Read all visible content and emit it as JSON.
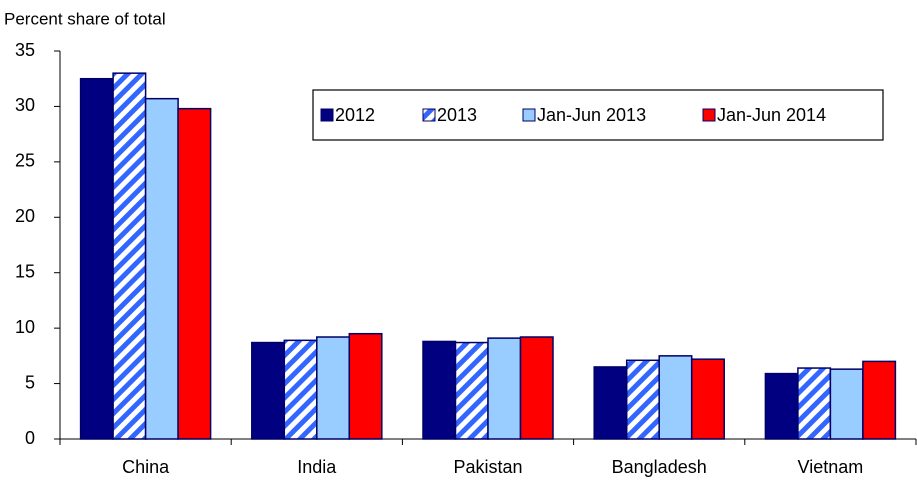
{
  "chart_data": {
    "type": "bar",
    "y_axis_label": "Percent share of total",
    "categories": [
      "China",
      "India",
      "Pakistan",
      "Bangladesh",
      "Vietnam"
    ],
    "series": [
      {
        "name": "2012",
        "color": "#000080",
        "values": [
          32.5,
          8.7,
          8.8,
          6.5,
          5.9
        ]
      },
      {
        "name": "2013",
        "color": "#3366ff",
        "hatch": true,
        "values": [
          33.0,
          8.9,
          8.7,
          7.1,
          6.4
        ]
      },
      {
        "name": "Jan-Jun 2013",
        "color": "#99ccff",
        "values": [
          30.7,
          9.2,
          9.1,
          7.5,
          6.3
        ]
      },
      {
        "name": "Jan-Jun 2014",
        "color": "#ff0000",
        "values": [
          29.8,
          9.5,
          9.2,
          7.2,
          7.0
        ]
      }
    ],
    "ylim": [
      0,
      35
    ],
    "yticks": [
      0,
      5,
      10,
      15,
      20,
      25,
      30,
      35
    ],
    "grid": false,
    "legend": "top-right"
  }
}
